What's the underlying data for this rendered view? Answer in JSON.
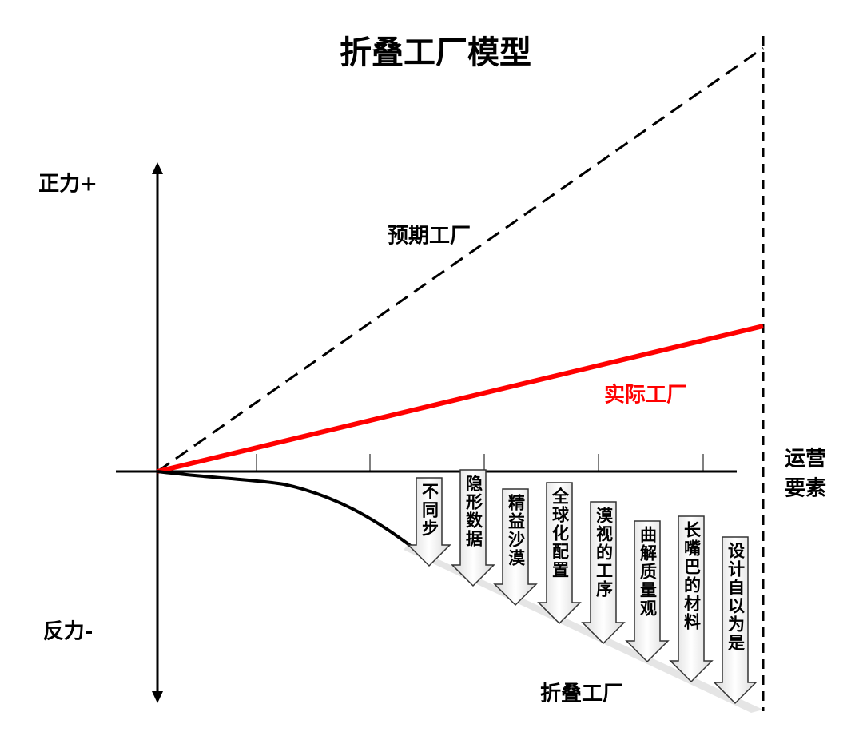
{
  "title": "折叠工厂模型",
  "axis_labels": {
    "positive": "正力+",
    "negative": "反力-"
  },
  "lines": {
    "expected": "预期工厂",
    "actual": "实际工厂"
  },
  "right_label": [
    "运营",
    "要素"
  ],
  "bottom_label": "折叠工厂",
  "arrows": [
    "不同步",
    "隐形数据",
    "精益沙漠",
    "全球化配置",
    "漠视的工序",
    "曲解质量观",
    "长嘴巴的材料",
    "设计自以为是"
  ]
}
